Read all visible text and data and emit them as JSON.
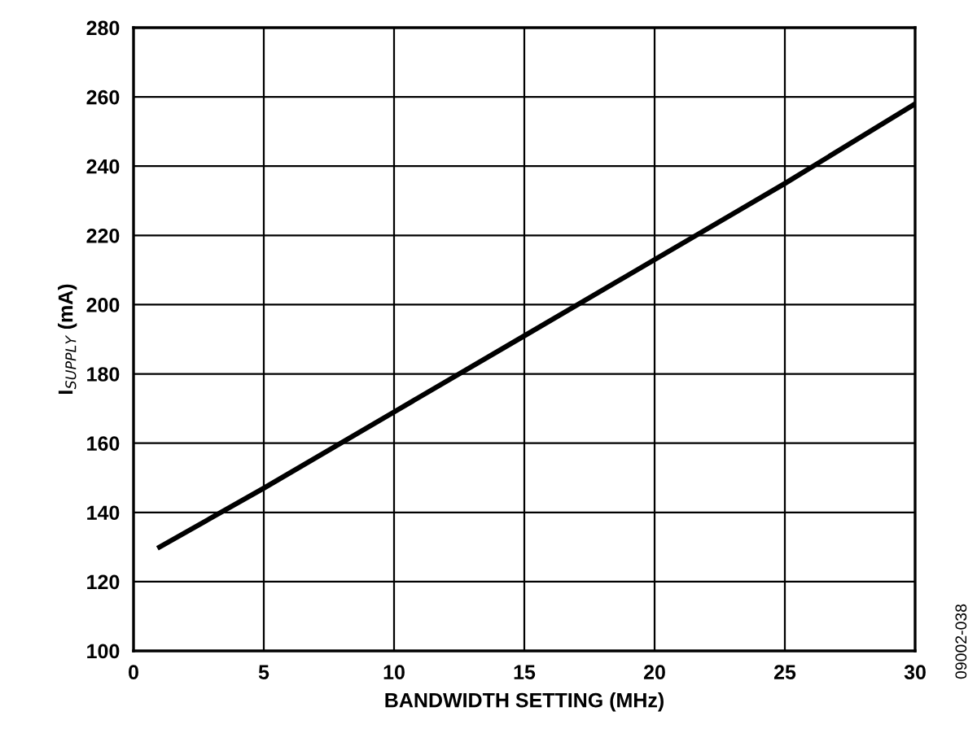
{
  "chart_data": {
    "type": "line",
    "xlabel": "BANDWIDTH SETTING (MHz)",
    "ylabel": "I$_{SUPPLY}$ (mA)",
    "x": [
      1,
      5,
      10,
      15,
      20,
      25,
      30
    ],
    "series": [
      {
        "color": "#000000",
        "values": [
          130,
          147,
          169,
          191,
          213,
          235,
          258
        ]
      }
    ],
    "xlim": [
      0,
      30
    ],
    "xticks": [
      0,
      5,
      10,
      15,
      20,
      25,
      30
    ],
    "ylim": [
      100,
      280
    ],
    "yticks": [
      100,
      120,
      140,
      160,
      180,
      200,
      220,
      240,
      260,
      280
    ],
    "grid": true,
    "marker": "none",
    "line_style": "solid",
    "legend": false,
    "annotations": [
      "09002-038"
    ]
  }
}
